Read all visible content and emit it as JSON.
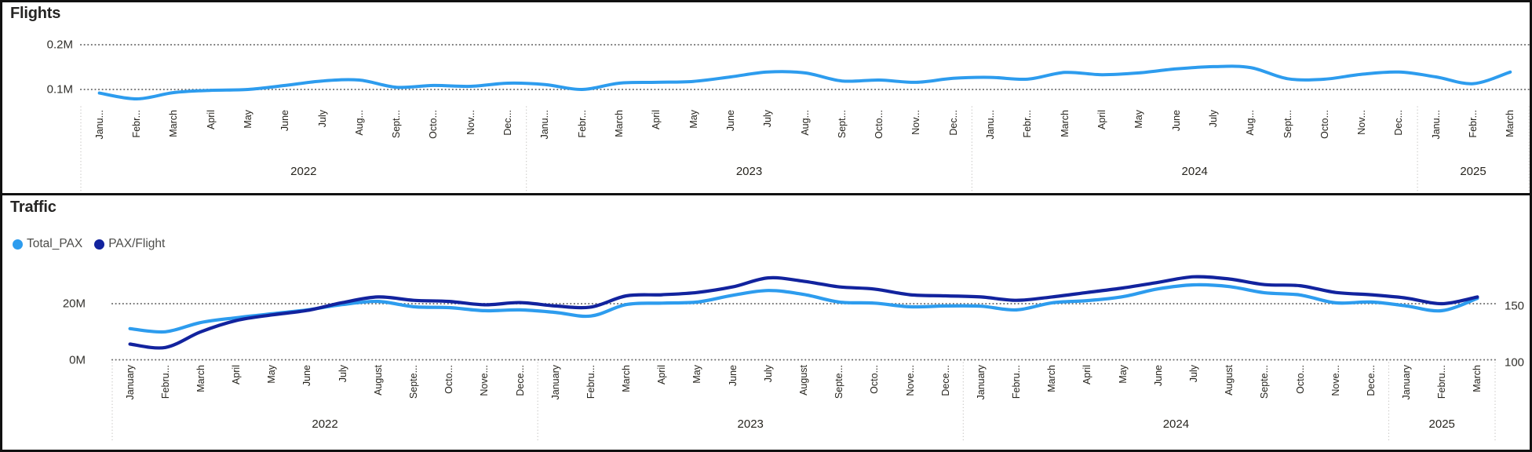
{
  "colors": {
    "background": "#FFFFFF",
    "panel_border": "#111111",
    "flights_line": "#2D9CEE",
    "total_pax_line": "#2D9CEE",
    "pax_per_flight_line": "#12239E",
    "gridline_dots": "#6E6E6E",
    "year_separator": "#C8C6C4",
    "axis_text": "#32312D",
    "month_text": "#27251F",
    "title_text": "#252423",
    "legend_text": "#4D4D4B"
  },
  "chart_data": [
    {
      "type": "line",
      "title": "Flights",
      "unit": "M",
      "grid": "dotted-horizontal",
      "legend_position": "none",
      "ylim": [
        0.05,
        0.22
      ],
      "y_axis": {
        "ticks": [
          {
            "label": "0.2M",
            "value": 0.2
          },
          {
            "label": "0.1M",
            "value": 0.1
          }
        ]
      },
      "years": [
        {
          "label": "2022",
          "months": [
            "Janu...",
            "Febr...",
            "March",
            "April",
            "May",
            "June",
            "July",
            "Aug...",
            "Sept...",
            "Octo...",
            "Nov...",
            "Dec..."
          ]
        },
        {
          "label": "2023",
          "months": [
            "Janu...",
            "Febr...",
            "March",
            "April",
            "May",
            "June",
            "July",
            "Aug...",
            "Sept...",
            "Octo...",
            "Nov...",
            "Dec..."
          ]
        },
        {
          "label": "2024",
          "months": [
            "Janu...",
            "Febr...",
            "March",
            "April",
            "May",
            "June",
            "July",
            "Aug...",
            "Sept...",
            "Octo...",
            "Nov...",
            "Dec..."
          ]
        },
        {
          "label": "2025",
          "months": [
            "Janu...",
            "Febr...",
            "March"
          ]
        }
      ],
      "series": [
        {
          "name": "Flights",
          "color": "#2D9CEE",
          "values": [
            0.092,
            0.079,
            0.093,
            0.098,
            0.1,
            0.109,
            0.119,
            0.121,
            0.105,
            0.109,
            0.107,
            0.114,
            0.111,
            0.1,
            0.114,
            0.116,
            0.118,
            0.128,
            0.139,
            0.137,
            0.119,
            0.121,
            0.116,
            0.125,
            0.127,
            0.123,
            0.138,
            0.133,
            0.137,
            0.146,
            0.151,
            0.149,
            0.124,
            0.123,
            0.134,
            0.139,
            0.128,
            0.113,
            0.139
          ]
        }
      ]
    },
    {
      "type": "line",
      "title": "Traffic",
      "grid": "dotted-horizontal",
      "legend_position": "top-left",
      "legend": [
        {
          "label": "Total_PAX",
          "color": "#2D9CEE"
        },
        {
          "label": "PAX/Flight",
          "color": "#12239E"
        }
      ],
      "left_ylim": [
        0,
        35.1
      ],
      "right_ylim": [
        100,
        187.7
      ],
      "left_axis": {
        "ticks": [
          {
            "label": "20M",
            "value": 20
          },
          {
            "label": "0M",
            "value": 0
          }
        ]
      },
      "right_axis": {
        "ticks": [
          {
            "label": "150",
            "value": 150
          },
          {
            "label": "100",
            "value": 100
          }
        ]
      },
      "years": [
        {
          "label": "2022",
          "months": [
            "January",
            "Febru...",
            "March",
            "April",
            "May",
            "June",
            "July",
            "August",
            "Septe...",
            "Octo...",
            "Nove...",
            "Dece..."
          ]
        },
        {
          "label": "2023",
          "months": [
            "January",
            "Febru...",
            "March",
            "April",
            "May",
            "June",
            "July",
            "August",
            "Septe...",
            "Octo...",
            "Nove...",
            "Dece..."
          ]
        },
        {
          "label": "2024",
          "months": [
            "January",
            "Febru...",
            "March",
            "April",
            "May",
            "June",
            "July",
            "August",
            "Septe...",
            "Octo...",
            "Nove...",
            "Dece..."
          ]
        },
        {
          "label": "2025",
          "months": [
            "January",
            "Febru...",
            "March"
          ]
        }
      ],
      "series": [
        {
          "name": "Total_PAX",
          "axis": "left",
          "unit": "M",
          "color": "#2D9CEE",
          "values": [
            11.1,
            10.0,
            13.3,
            15.0,
            16.4,
            17.8,
            19.7,
            20.8,
            18.9,
            18.6,
            17.5,
            17.8,
            16.9,
            15.6,
            19.7,
            20.2,
            20.6,
            23.0,
            24.7,
            23.3,
            20.6,
            20.2,
            18.9,
            19.2,
            19.1,
            17.8,
            20.3,
            21.1,
            22.5,
            25.3,
            26.7,
            26.1,
            23.9,
            23.1,
            20.3,
            20.6,
            19.2,
            17.5,
            21.9
          ]
        },
        {
          "name": "PAX/Flight",
          "axis": "right",
          "color": "#12239E",
          "values": [
            114,
            111,
            125,
            135,
            140,
            144,
            151,
            156,
            153,
            152,
            149,
            151,
            148,
            147,
            157,
            158,
            160,
            165,
            173,
            170,
            165,
            163,
            158,
            157,
            156,
            153,
            156,
            160,
            164,
            169,
            174,
            172,
            167,
            166,
            160,
            158,
            155,
            150,
            156
          ]
        }
      ]
    }
  ]
}
